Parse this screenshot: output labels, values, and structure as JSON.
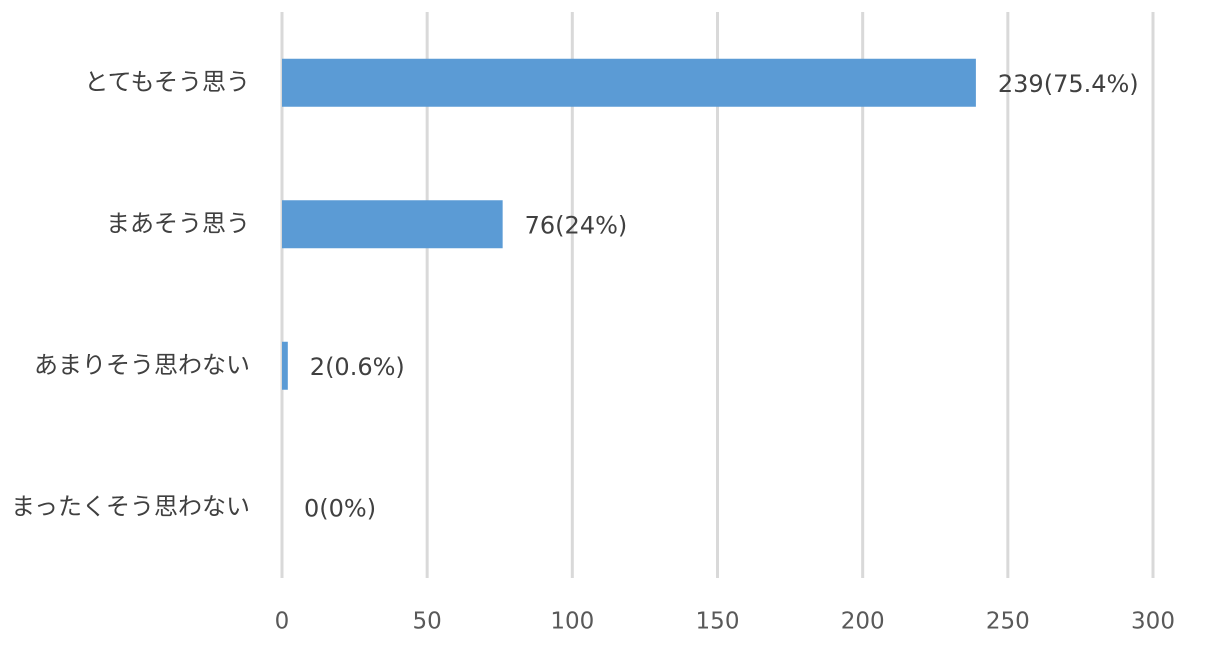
{
  "chart_data": {
    "type": "barh",
    "categories": [
      "とてもそう思う",
      "まあそう思う",
      "あまりそう思わない",
      "まったくそう思わない"
    ],
    "values": [
      239,
      76,
      2,
      0
    ],
    "value_labels": [
      "239(75.4%)",
      "76(24%)",
      "2(0.6%)",
      "0(0%)"
    ],
    "color": "#5b9bd5",
    "xlim": [
      0,
      300
    ],
    "xticks": [
      0,
      50,
      100,
      150,
      200,
      250,
      300
    ],
    "grid": true
  }
}
